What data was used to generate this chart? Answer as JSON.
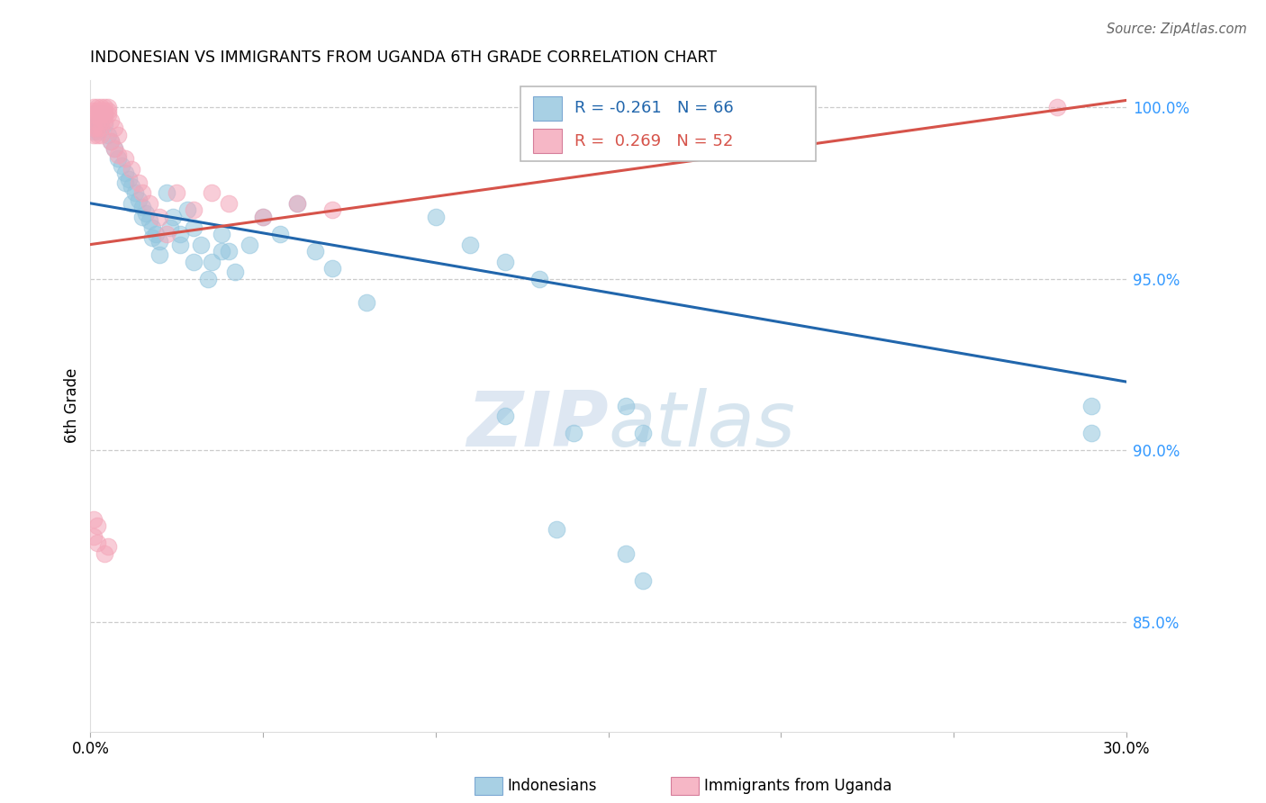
{
  "title": "INDONESIAN VS IMMIGRANTS FROM UGANDA 6TH GRADE CORRELATION CHART",
  "source": "Source: ZipAtlas.com",
  "ylabel": "6th Grade",
  "xlim": [
    0.0,
    0.3
  ],
  "ylim": [
    0.818,
    1.008
  ],
  "yticks": [
    0.85,
    0.9,
    0.95,
    1.0
  ],
  "yticklabels": [
    "85.0%",
    "90.0%",
    "95.0%",
    "100.0%"
  ],
  "xtick_positions": [
    0.0,
    0.05,
    0.1,
    0.15,
    0.2,
    0.25,
    0.3
  ],
  "xtick_labels": [
    "0.0%",
    "",
    "",
    "",
    "",
    "",
    "30.0%"
  ],
  "legend_blue_label": "Indonesians",
  "legend_pink_label": "Immigrants from Uganda",
  "R_blue": -0.261,
  "N_blue": 66,
  "R_pink": 0.269,
  "N_pink": 52,
  "blue_color": "#92c5de",
  "pink_color": "#f4a5b8",
  "blue_line_color": "#2166ac",
  "pink_line_color": "#d6534a",
  "blue_line": [
    [
      0.0,
      0.972
    ],
    [
      0.3,
      0.92
    ]
  ],
  "pink_line": [
    [
      0.0,
      0.96
    ],
    [
      0.3,
      1.002
    ]
  ],
  "blue_points": [
    [
      0.001,
      0.998
    ],
    [
      0.002,
      0.998
    ],
    [
      0.003,
      0.998
    ],
    [
      0.004,
      0.998
    ],
    [
      0.001,
      0.996
    ],
    [
      0.002,
      0.996
    ],
    [
      0.003,
      0.996
    ],
    [
      0.001,
      0.993
    ],
    [
      0.002,
      0.993
    ],
    [
      0.004,
      0.995
    ],
    [
      0.005,
      0.992
    ],
    [
      0.006,
      0.99
    ],
    [
      0.007,
      0.988
    ],
    [
      0.008,
      0.985
    ],
    [
      0.009,
      0.983
    ],
    [
      0.01,
      0.981
    ],
    [
      0.011,
      0.979
    ],
    [
      0.012,
      0.977
    ],
    [
      0.013,
      0.975
    ],
    [
      0.014,
      0.973
    ],
    [
      0.015,
      0.971
    ],
    [
      0.016,
      0.969
    ],
    [
      0.017,
      0.967
    ],
    [
      0.018,
      0.965
    ],
    [
      0.019,
      0.963
    ],
    [
      0.02,
      0.961
    ],
    [
      0.022,
      0.975
    ],
    [
      0.024,
      0.968
    ],
    [
      0.026,
      0.963
    ],
    [
      0.028,
      0.97
    ],
    [
      0.03,
      0.965
    ],
    [
      0.032,
      0.96
    ],
    [
      0.035,
      0.955
    ],
    [
      0.038,
      0.963
    ],
    [
      0.04,
      0.958
    ],
    [
      0.01,
      0.978
    ],
    [
      0.012,
      0.972
    ],
    [
      0.015,
      0.968
    ],
    [
      0.018,
      0.962
    ],
    [
      0.02,
      0.957
    ],
    [
      0.023,
      0.965
    ],
    [
      0.026,
      0.96
    ],
    [
      0.03,
      0.955
    ],
    [
      0.034,
      0.95
    ],
    [
      0.038,
      0.958
    ],
    [
      0.042,
      0.952
    ],
    [
      0.046,
      0.96
    ],
    [
      0.05,
      0.968
    ],
    [
      0.055,
      0.963
    ],
    [
      0.06,
      0.972
    ],
    [
      0.065,
      0.958
    ],
    [
      0.07,
      0.953
    ],
    [
      0.08,
      0.943
    ],
    [
      0.1,
      0.968
    ],
    [
      0.11,
      0.96
    ],
    [
      0.12,
      0.955
    ],
    [
      0.13,
      0.95
    ],
    [
      0.14,
      0.905
    ],
    [
      0.155,
      0.913
    ],
    [
      0.16,
      0.905
    ],
    [
      0.12,
      0.91
    ],
    [
      0.29,
      0.913
    ],
    [
      0.29,
      0.905
    ],
    [
      0.155,
      0.87
    ],
    [
      0.16,
      0.862
    ],
    [
      0.135,
      0.877
    ]
  ],
  "pink_points": [
    [
      0.001,
      1.0
    ],
    [
      0.001,
      0.999
    ],
    [
      0.002,
      1.0
    ],
    [
      0.002,
      0.999
    ],
    [
      0.003,
      1.0
    ],
    [
      0.003,
      0.999
    ],
    [
      0.004,
      1.0
    ],
    [
      0.004,
      0.999
    ],
    [
      0.005,
      1.0
    ],
    [
      0.005,
      0.999
    ],
    [
      0.001,
      0.998
    ],
    [
      0.002,
      0.998
    ],
    [
      0.003,
      0.998
    ],
    [
      0.004,
      0.998
    ],
    [
      0.005,
      0.998
    ],
    [
      0.001,
      0.996
    ],
    [
      0.002,
      0.996
    ],
    [
      0.003,
      0.996
    ],
    [
      0.004,
      0.996
    ],
    [
      0.001,
      0.994
    ],
    [
      0.002,
      0.994
    ],
    [
      0.003,
      0.994
    ],
    [
      0.001,
      0.992
    ],
    [
      0.002,
      0.992
    ],
    [
      0.003,
      0.992
    ],
    [
      0.006,
      0.996
    ],
    [
      0.007,
      0.994
    ],
    [
      0.008,
      0.992
    ],
    [
      0.006,
      0.99
    ],
    [
      0.007,
      0.988
    ],
    [
      0.008,
      0.986
    ],
    [
      0.01,
      0.985
    ],
    [
      0.012,
      0.982
    ],
    [
      0.014,
      0.978
    ],
    [
      0.015,
      0.975
    ],
    [
      0.017,
      0.972
    ],
    [
      0.02,
      0.968
    ],
    [
      0.022,
      0.963
    ],
    [
      0.025,
      0.975
    ],
    [
      0.03,
      0.97
    ],
    [
      0.035,
      0.975
    ],
    [
      0.04,
      0.972
    ],
    [
      0.05,
      0.968
    ],
    [
      0.06,
      0.972
    ],
    [
      0.07,
      0.97
    ],
    [
      0.28,
      1.0
    ],
    [
      0.001,
      0.88
    ],
    [
      0.002,
      0.878
    ],
    [
      0.001,
      0.875
    ],
    [
      0.002,
      0.873
    ],
    [
      0.004,
      0.87
    ],
    [
      0.005,
      0.872
    ]
  ]
}
